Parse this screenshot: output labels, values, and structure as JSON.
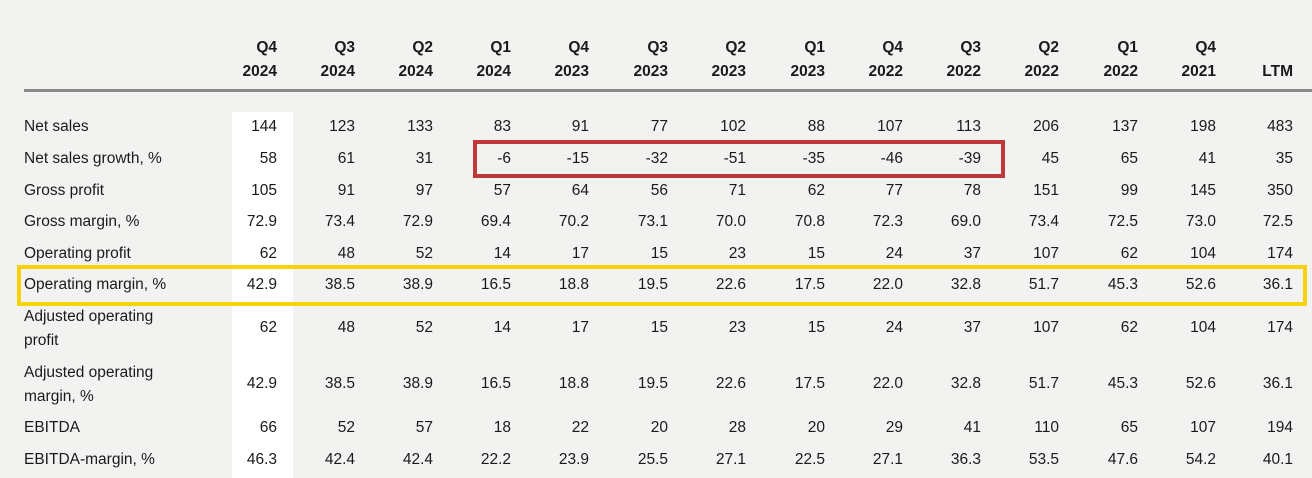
{
  "columns": [
    {
      "l1": "Q4",
      "l2": "2024"
    },
    {
      "l1": "Q3",
      "l2": "2024"
    },
    {
      "l1": "Q2",
      "l2": "2024"
    },
    {
      "l1": "Q1",
      "l2": "2024"
    },
    {
      "l1": "Q4",
      "l2": "2023"
    },
    {
      "l1": "Q3",
      "l2": "2023"
    },
    {
      "l1": "Q2",
      "l2": "2023"
    },
    {
      "l1": "Q1",
      "l2": "2023"
    },
    {
      "l1": "Q4",
      "l2": "2022"
    },
    {
      "l1": "Q3",
      "l2": "2022"
    },
    {
      "l1": "Q2",
      "l2": "2022"
    },
    {
      "l1": "Q1",
      "l2": "2022"
    },
    {
      "l1": "Q4",
      "l2": "2021"
    },
    {
      "l1": "",
      "l2": "LTM"
    }
  ],
  "rows": [
    {
      "label": "Net sales",
      "values": [
        "144",
        "123",
        "133",
        "83",
        "91",
        "77",
        "102",
        "88",
        "107",
        "113",
        "206",
        "137",
        "198",
        "483"
      ]
    },
    {
      "label": "Net sales growth, %",
      "values": [
        "58",
        "61",
        "31",
        "-6",
        "-15",
        "-32",
        "-51",
        "-35",
        "-46",
        "-39",
        "45",
        "65",
        "41",
        "35"
      ]
    },
    {
      "label": "Gross profit",
      "values": [
        "105",
        "91",
        "97",
        "57",
        "64",
        "56",
        "71",
        "62",
        "77",
        "78",
        "151",
        "99",
        "145",
        "350"
      ]
    },
    {
      "label": "Gross margin, %",
      "values": [
        "72.9",
        "73.4",
        "72.9",
        "69.4",
        "70.2",
        "73.1",
        "70.0",
        "70.8",
        "72.3",
        "69.0",
        "73.4",
        "72.5",
        "73.0",
        "72.5"
      ]
    },
    {
      "label": "Operating profit",
      "values": [
        "62",
        "48",
        "52",
        "14",
        "17",
        "15",
        "23",
        "15",
        "24",
        "37",
        "107",
        "62",
        "104",
        "174"
      ]
    },
    {
      "label": "Operating margin, %",
      "values": [
        "42.9",
        "38.5",
        "38.9",
        "16.5",
        "18.8",
        "19.5",
        "22.6",
        "17.5",
        "22.0",
        "32.8",
        "51.7",
        "45.3",
        "52.6",
        "36.1"
      ]
    },
    {
      "label": "Adjusted operating",
      "label2": "profit",
      "values": [
        "62",
        "48",
        "52",
        "14",
        "17",
        "15",
        "23",
        "15",
        "24",
        "37",
        "107",
        "62",
        "104",
        "174"
      ]
    },
    {
      "label": "Adjusted operating",
      "label2": "margin, %",
      "values": [
        "42.9",
        "38.5",
        "38.9",
        "16.5",
        "18.8",
        "19.5",
        "22.6",
        "17.5",
        "22.0",
        "32.8",
        "51.7",
        "45.3",
        "52.6",
        "36.1"
      ]
    },
    {
      "label": "EBITDA",
      "values": [
        "66",
        "52",
        "57",
        "18",
        "22",
        "20",
        "28",
        "20",
        "29",
        "41",
        "110",
        "65",
        "107",
        "194"
      ]
    },
    {
      "label": "EBITDA-margin, %",
      "values": [
        "46.3",
        "42.4",
        "42.4",
        "22.2",
        "23.9",
        "25.5",
        "27.1",
        "22.5",
        "27.1",
        "36.3",
        "53.5",
        "47.6",
        "54.2",
        "40.1"
      ]
    }
  ],
  "colors": {
    "background": "#f2f2f1",
    "highlight_column": "#ffffff",
    "red_box": "#c0393a",
    "yellow_box": "#f5d20a",
    "rule": "#8a8a8a"
  }
}
